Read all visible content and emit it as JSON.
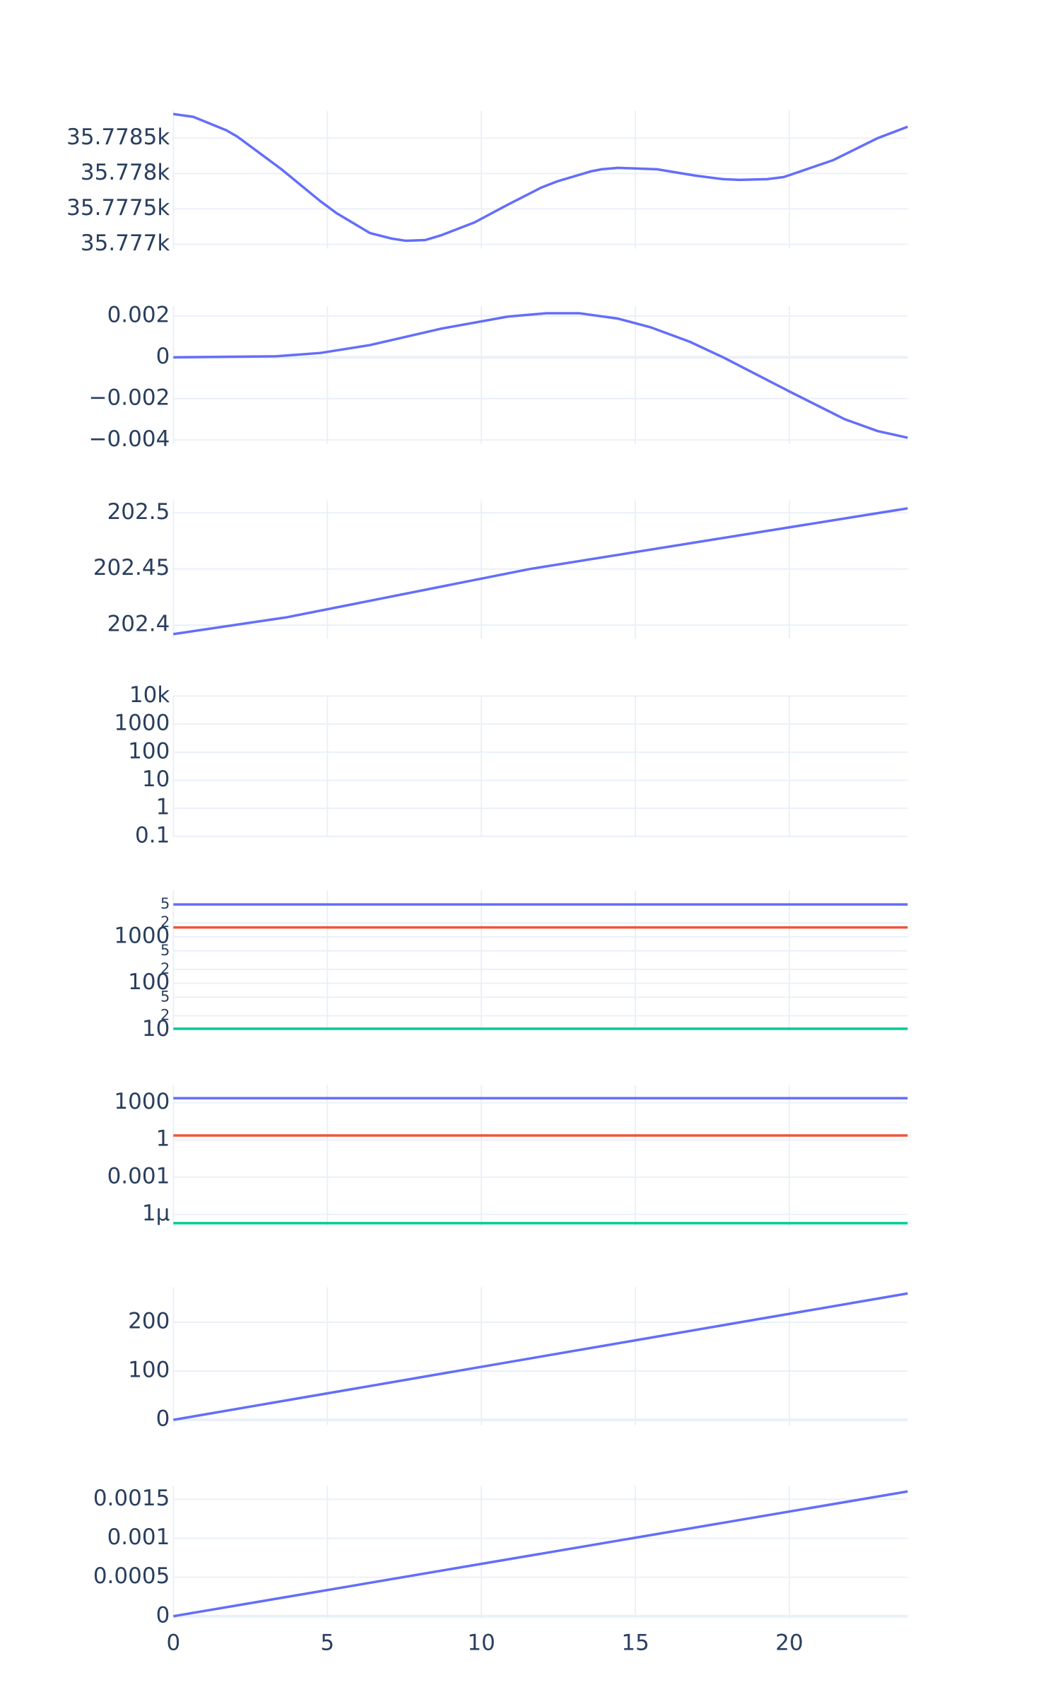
{
  "chart_data": [
    {
      "type": "line",
      "xlim": [
        0,
        23.84
      ],
      "xticks": [
        0,
        5,
        10,
        15,
        20
      ],
      "ylim": [
        35776.94,
        35778.89
      ],
      "yticks": [
        {
          "value": 35777,
          "label": "35.777k"
        },
        {
          "value": 35777.5,
          "label": "35.7775k"
        },
        {
          "value": 35778,
          "label": "35.778k"
        },
        {
          "value": 35778.5,
          "label": "35.7785k"
        }
      ],
      "x": [
        0,
        0.65,
        1.72,
        2.08,
        3.51,
        4.77,
        5.3,
        6.38,
        7.1,
        7.56,
        8.17,
        8.71,
        9.78,
        10.86,
        11.94,
        12.47,
        13.55,
        13.91,
        14.44,
        15.7,
        16.95,
        17.85,
        18.39,
        19.28,
        19.82,
        21.43,
        22.87,
        23.84
      ],
      "series": [
        {
          "color": "#636efa",
          "values": [
            35778.84,
            35778.8,
            35778.61,
            35778.52,
            35778.06,
            35777.61,
            35777.44,
            35777.16,
            35777.08,
            35777.05,
            35777.06,
            35777.13,
            35777.31,
            35777.56,
            35777.8,
            35777.89,
            35778.03,
            35778.06,
            35778.08,
            35778.06,
            35777.97,
            35777.92,
            35777.91,
            35777.92,
            35777.95,
            35778.19,
            35778.5,
            35778.66
          ]
        }
      ]
    },
    {
      "type": "line",
      "xlim": [
        0,
        23.84
      ],
      "xticks": [
        0,
        5,
        10,
        15,
        20
      ],
      "ylim": [
        -0.0042,
        0.00248
      ],
      "yticks": [
        {
          "value": -0.004,
          "label": "−0.004"
        },
        {
          "value": -0.002,
          "label": "−0.002"
        },
        0,
        0.002
      ],
      "x": [
        0,
        3.33,
        4.77,
        6.38,
        8.71,
        10.86,
        12.11,
        13.19,
        14.44,
        15.52,
        16.77,
        17.85,
        20.0,
        21.79,
        22.87,
        23.84
      ],
      "series": [
        {
          "color": "#636efa",
          "values": [
            0,
            5e-05,
            0.00021,
            0.00059,
            0.00139,
            0.00197,
            0.00213,
            0.00213,
            0.00187,
            0.00144,
            0.00075,
            0,
            -0.00165,
            -0.00299,
            -0.00357,
            -0.00389
          ]
        }
      ]
    },
    {
      "type": "line",
      "xlim": [
        0,
        23.84
      ],
      "xticks": [
        0,
        5,
        10,
        15,
        20
      ],
      "ylim": [
        202.388,
        202.511
      ],
      "yticks": [
        202.4,
        202.45,
        202.5
      ],
      "x": [
        0,
        3.69,
        11.58,
        23.84
      ],
      "series": [
        {
          "color": "#636efa",
          "values": [
            202.392,
            202.407,
            202.45,
            202.504
          ]
        }
      ]
    },
    {
      "type": "line",
      "xlim": [
        0,
        23.84
      ],
      "xticks": [
        0,
        5,
        10,
        15,
        20
      ],
      "log_y": true,
      "ylim": [
        0.1,
        10000
      ],
      "yticks": [
        0.1,
        1,
        10,
        100,
        1000,
        {
          "value": 10000,
          "label": "10k"
        }
      ],
      "x": [],
      "series": []
    },
    {
      "type": "line",
      "xlim": [
        0,
        23.84
      ],
      "xticks": [
        0,
        5,
        10,
        15,
        20
      ],
      "log_y": true,
      "ylim": [
        10,
        10000
      ],
      "yticks": [
        10,
        {
          "value": 20,
          "label": "2"
        },
        {
          "value": 50,
          "label": "5"
        },
        100,
        {
          "value": 200,
          "label": "2"
        },
        {
          "value": 500,
          "label": "5"
        },
        1000,
        {
          "value": 2000,
          "label": "2"
        },
        {
          "value": 5000,
          "label": "5"
        }
      ],
      "x": [
        0,
        23.84
      ],
      "series": [
        {
          "color": "#636efa",
          "values": [
            5000,
            5000
          ]
        },
        {
          "color": "#ef553b",
          "values": [
            1600,
            1600
          ]
        },
        {
          "color": "#00cc96",
          "values": [
            10.5,
            10.5
          ]
        }
      ]
    },
    {
      "type": "line",
      "xlim": [
        0,
        23.84
      ],
      "xticks": [
        0,
        5,
        10,
        15,
        20
      ],
      "log_y": true,
      "ylim": [
        1.1e-07,
        27000
      ],
      "yticks": [
        {
          "value": 1e-06,
          "label": "1μ"
        },
        0.001,
        1,
        1000
      ],
      "x": [
        0,
        23.84
      ],
      "series": [
        {
          "color": "#636efa",
          "values": [
            2300,
            2300
          ]
        },
        {
          "color": "#ef553b",
          "values": [
            2.3,
            2.3
          ]
        },
        {
          "color": "#00cc96",
          "values": [
            2e-07,
            2e-07
          ]
        }
      ]
    },
    {
      "type": "line",
      "xlim": [
        0,
        23.84
      ],
      "xticks": [
        0,
        5,
        10,
        15,
        20
      ],
      "ylim": [
        -11,
        272
      ],
      "yticks": [
        0,
        100,
        200
      ],
      "x": [
        0,
        23.84
      ],
      "series": [
        {
          "color": "#636efa",
          "values": [
            0,
            259
          ]
        }
      ]
    },
    {
      "type": "line",
      "xlim": [
        0,
        23.84
      ],
      "xticks": [
        0,
        5,
        10,
        15,
        20
      ],
      "ylim": [
        -3e-05,
        0.00167
      ],
      "yticks": [
        0,
        0.0005,
        0.001,
        0.0015
      ],
      "x": [
        0,
        23.84
      ],
      "series": [
        {
          "color": "#636efa",
          "values": [
            0,
            0.0016
          ]
        }
      ]
    }
  ]
}
